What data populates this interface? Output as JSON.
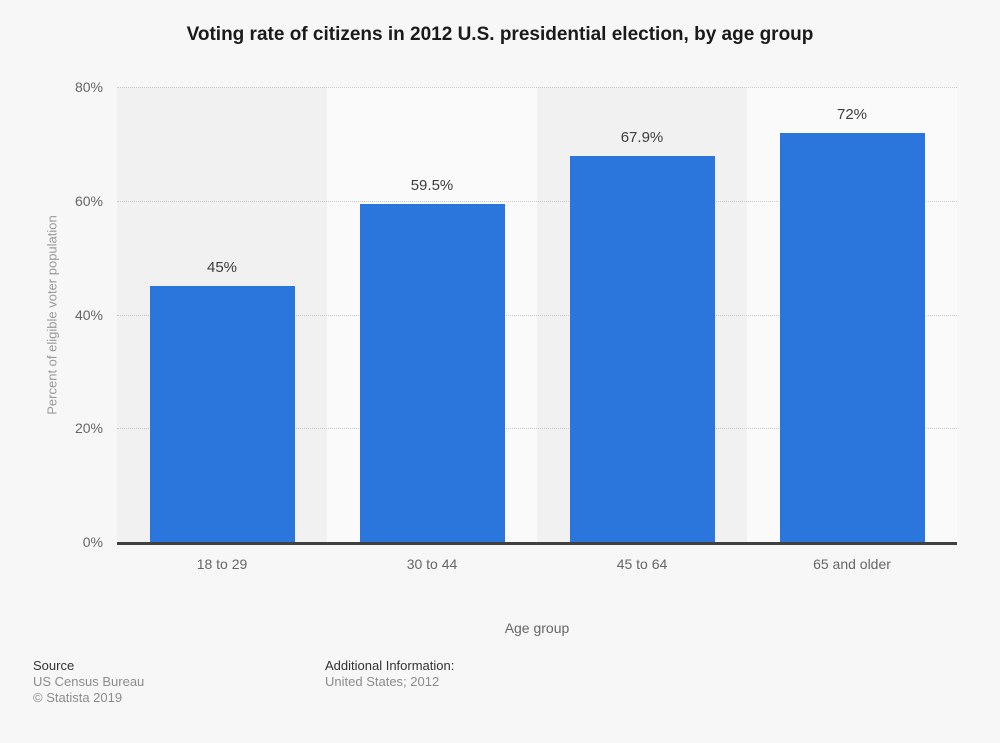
{
  "title": "Voting rate of citizens in 2012 U.S. presidential election, by age group",
  "chart_data": {
    "type": "bar",
    "categories": [
      "18 to 29",
      "30 to 44",
      "45 to 64",
      "65 and older"
    ],
    "values": [
      45,
      59.5,
      67.9,
      72
    ],
    "value_labels": [
      "45%",
      "59.5%",
      "67.9%",
      "72%"
    ],
    "title": "Voting rate of citizens in 2012 U.S. presidential election, by age group",
    "xlabel": "Age group",
    "ylabel": "Percent of eligible voter population",
    "ylim": [
      0,
      80
    ],
    "ytick_labels": [
      "80%",
      "60%",
      "40%",
      "20%",
      "0%"
    ],
    "ytick_values": [
      80,
      60,
      40,
      20,
      0
    ],
    "grid": "horizontal-dotted",
    "legend": "none",
    "bar_color": "#2b76dd",
    "band_colors": [
      "#f1f1f1",
      "#fafafa"
    ],
    "axis_line_color": "#404040"
  },
  "footer": {
    "source_label": "Source",
    "source_lines": [
      "US Census Bureau",
      "© Statista 2019"
    ],
    "additional_label": "Additional Information:",
    "additional_lines": [
      "United States; 2012"
    ]
  }
}
